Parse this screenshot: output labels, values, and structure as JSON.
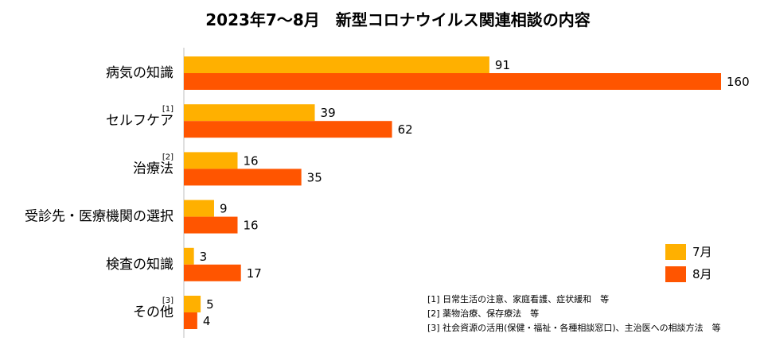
{
  "chart_data": {
    "type": "bar",
    "orientation": "horizontal",
    "title": "2023年7〜8月　新型コロナウイルス関連相談の内容",
    "categories": [
      "病気の知識",
      "セルフケア",
      "治療法",
      "受診先・医療機関の選択",
      "検査の知識",
      "その他"
    ],
    "category_notes": [
      "",
      "[1]",
      "[2]",
      "",
      "",
      "[3]"
    ],
    "series": [
      {
        "name": "7月",
        "color": "#FFB000",
        "values": [
          91,
          39,
          16,
          9,
          3,
          5
        ]
      },
      {
        "name": "8月",
        "color": "#FF5500",
        "values": [
          160,
          62,
          35,
          16,
          17,
          4
        ]
      }
    ],
    "xlim": [
      0,
      160
    ],
    "grid": false,
    "legend": "right",
    "footnotes": [
      "[1] 日常生活の注意、家庭看護、症状緩和　等",
      "[2] 薬物治療、保存療法　等",
      "[3] 社会資源の活用(保健・福祉・各種相談窓口)、主治医への相談方法　等"
    ]
  }
}
